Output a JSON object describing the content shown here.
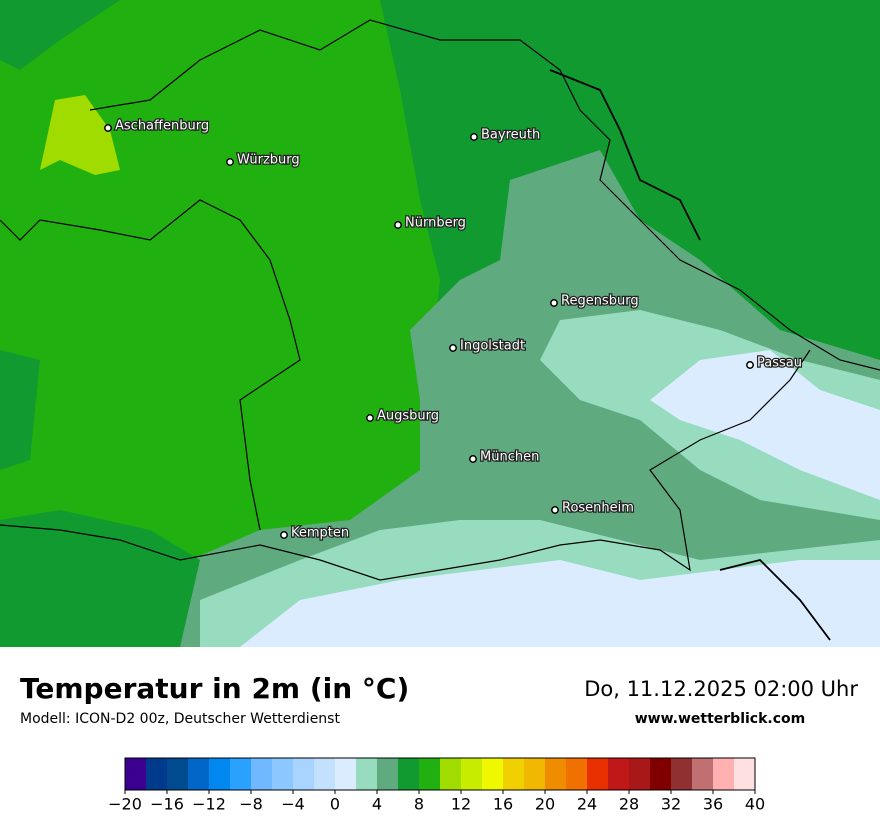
{
  "header": {
    "title": "Temperatur in 2m (in °C)",
    "model": "Modell: ICON-D2 00z, Deutscher Wetterdienst",
    "datetime": "Do, 11.12.2025 02:00 Uhr",
    "website": "www.wetterblick.com"
  },
  "cities": [
    "Aschaffenburg",
    "Würzburg",
    "Bayreuth",
    "Nürnberg",
    "Regensburg",
    "Ingolstadt",
    "Passau",
    "Augsburg",
    "München",
    "Rosenheim",
    "Kempten"
  ],
  "colorbar": {
    "lim": [
      -20,
      40
    ],
    "colors": [
      "#3c0090",
      "#003a8c",
      "#004a90",
      "#0066c8",
      "#0088f0",
      "#2aa0ff",
      "#70b8ff",
      "#8cc8ff",
      "#a8d4ff",
      "#c4e0ff",
      "#dcecff",
      "#98dcc0",
      "#60aa80",
      "#109a30",
      "#20b010",
      "#a0dc00",
      "#c8ec00",
      "#f0f800",
      "#f0d000",
      "#f0b800",
      "#f08c00",
      "#f07000",
      "#e83000",
      "#c01818",
      "#a81818",
      "#800000",
      "#903030",
      "#c07070",
      "#ffb0b0",
      "#ffe0e0"
    ],
    "ticks": [
      {
        "value": -20,
        "label": "−20"
      },
      {
        "value": -16,
        "label": "−16"
      },
      {
        "value": -12,
        "label": "−12"
      },
      {
        "value": -8,
        "label": "−8"
      },
      {
        "value": -4,
        "label": "−4"
      },
      0,
      4,
      8,
      12,
      16,
      20,
      24,
      28,
      32,
      36,
      40
    ]
  }
}
